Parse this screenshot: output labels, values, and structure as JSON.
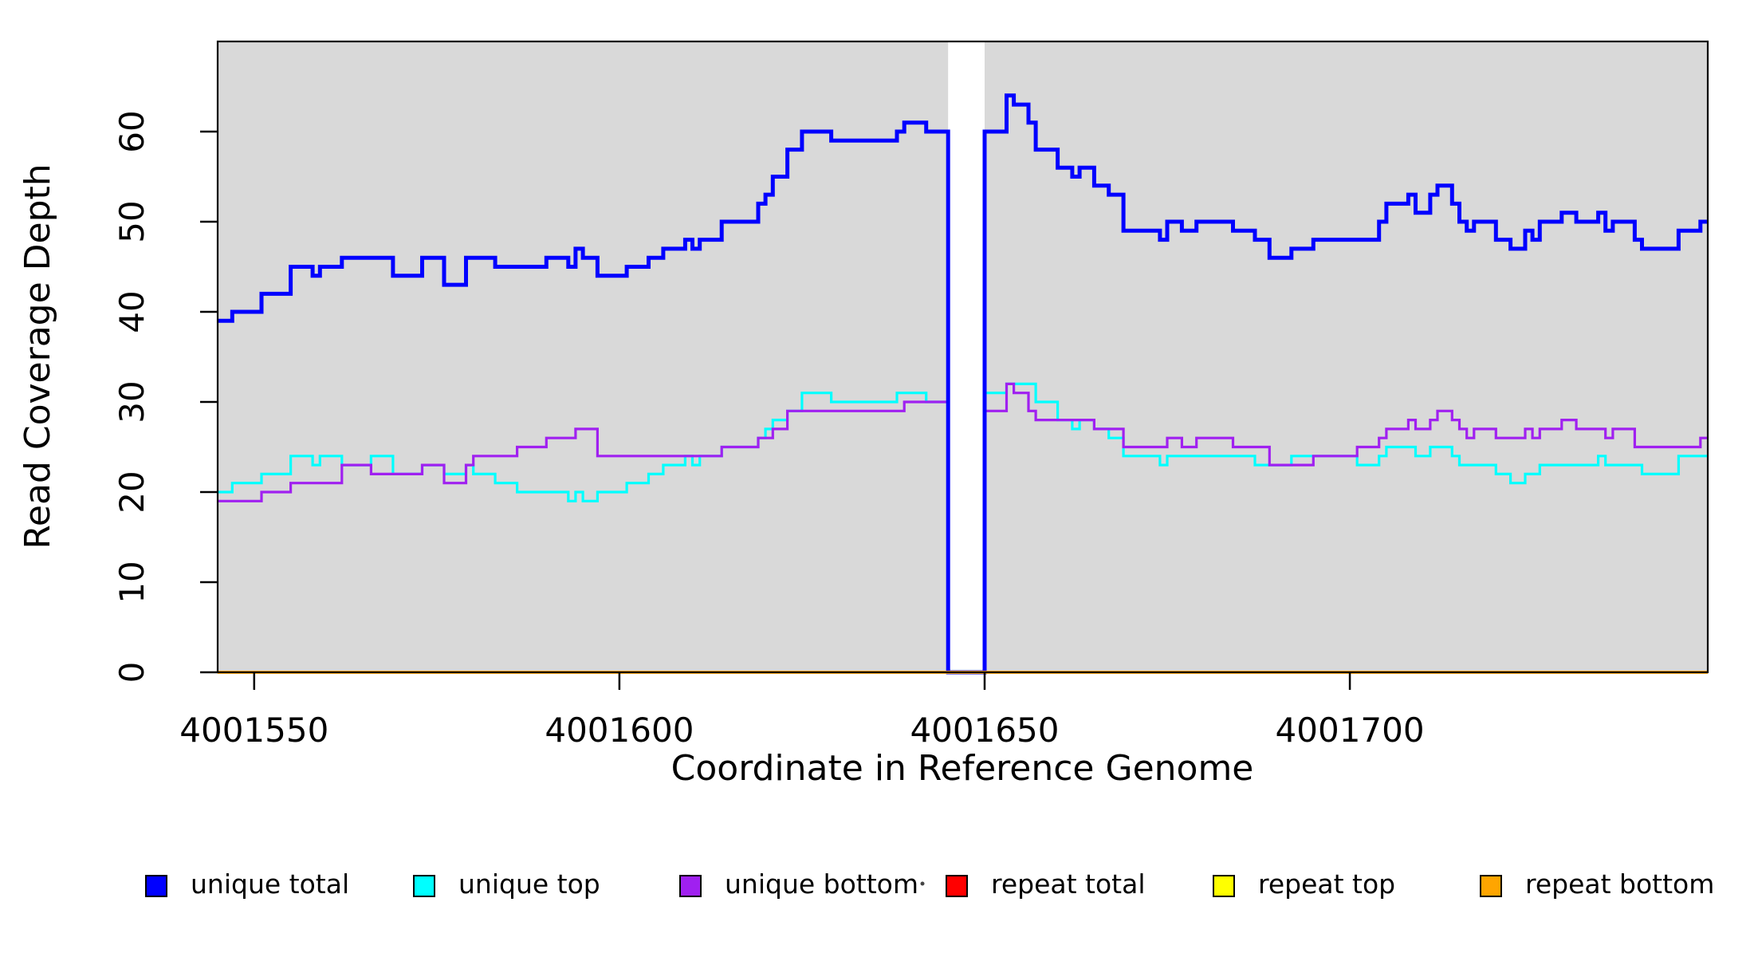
{
  "chart_data": {
    "type": "line",
    "subtype": "step-coverage-plot",
    "title": "",
    "xlabel": "Coordinate in Reference Genome",
    "ylabel": "Read Coverage Depth",
    "xlim": [
      4001545,
      4001749
    ],
    "ylim": [
      0,
      70
    ],
    "x_ticks": [
      4001550,
      4001600,
      4001650,
      4001700
    ],
    "y_ticks": [
      0,
      10,
      20,
      30,
      40,
      50,
      60
    ],
    "grid": "off",
    "plot_background": "#d9d9d9",
    "page_background": "#ffffff",
    "gap_region": {
      "start": 4001645,
      "end": 4001650,
      "color": "#ffffff",
      "note": "white band where all coverage = 0"
    },
    "legend_position": "bottom",
    "x_base": 4001545,
    "x_end_offset": 204,
    "series": [
      {
        "name": "unique total",
        "color": "#0000ff",
        "line_width": 5,
        "segments": [
          [
            0,
            39
          ],
          [
            2,
            40
          ],
          [
            6,
            42
          ],
          [
            10,
            45
          ],
          [
            13,
            44
          ],
          [
            14,
            45
          ],
          [
            17,
            46
          ],
          [
            24,
            44
          ],
          [
            28,
            46
          ],
          [
            31,
            43
          ],
          [
            34,
            46
          ],
          [
            38,
            45
          ],
          [
            45,
            46
          ],
          [
            48,
            45
          ],
          [
            49,
            47
          ],
          [
            50,
            46
          ],
          [
            52,
            44
          ],
          [
            56,
            45
          ],
          [
            59,
            46
          ],
          [
            61,
            47
          ],
          [
            64,
            48
          ],
          [
            65,
            47
          ],
          [
            66,
            48
          ],
          [
            69,
            50
          ],
          [
            74,
            52
          ],
          [
            75,
            53
          ],
          [
            76,
            55
          ],
          [
            78,
            58
          ],
          [
            80,
            60
          ],
          [
            84,
            59
          ],
          [
            93,
            60
          ],
          [
            94,
            61
          ],
          [
            97,
            60
          ],
          [
            100,
            0
          ],
          [
            105,
            60
          ],
          [
            108,
            64
          ],
          [
            109,
            63
          ],
          [
            111,
            61
          ],
          [
            112,
            58
          ],
          [
            115,
            56
          ],
          [
            117,
            55
          ],
          [
            118,
            56
          ],
          [
            120,
            54
          ],
          [
            122,
            53
          ],
          [
            124,
            49
          ],
          [
            129,
            48
          ],
          [
            130,
            50
          ],
          [
            132,
            49
          ],
          [
            134,
            50
          ],
          [
            139,
            49
          ],
          [
            142,
            48
          ],
          [
            144,
            46
          ],
          [
            147,
            47
          ],
          [
            150,
            48
          ],
          [
            159,
            50
          ],
          [
            160,
            52
          ],
          [
            163,
            53
          ],
          [
            164,
            51
          ],
          [
            166,
            53
          ],
          [
            167,
            54
          ],
          [
            169,
            52
          ],
          [
            170,
            50
          ],
          [
            171,
            49
          ],
          [
            172,
            50
          ],
          [
            175,
            48
          ],
          [
            177,
            47
          ],
          [
            179,
            49
          ],
          [
            180,
            48
          ],
          [
            181,
            50
          ],
          [
            184,
            51
          ],
          [
            186,
            50
          ],
          [
            189,
            51
          ],
          [
            190,
            49
          ],
          [
            191,
            50
          ],
          [
            194,
            48
          ],
          [
            195,
            47
          ],
          [
            200,
            49
          ],
          [
            203,
            50
          ]
        ]
      },
      {
        "name": "unique top",
        "color": "#00ffff",
        "line_width": 3.2,
        "segments": [
          [
            0,
            20
          ],
          [
            2,
            21
          ],
          [
            6,
            22
          ],
          [
            10,
            24
          ],
          [
            13,
            23
          ],
          [
            14,
            24
          ],
          [
            17,
            23
          ],
          [
            21,
            24
          ],
          [
            24,
            22
          ],
          [
            28,
            23
          ],
          [
            31,
            22
          ],
          [
            34,
            23
          ],
          [
            35,
            22
          ],
          [
            38,
            21
          ],
          [
            41,
            20
          ],
          [
            48,
            19
          ],
          [
            49,
            20
          ],
          [
            50,
            19
          ],
          [
            52,
            20
          ],
          [
            56,
            21
          ],
          [
            59,
            22
          ],
          [
            61,
            23
          ],
          [
            64,
            24
          ],
          [
            65,
            23
          ],
          [
            66,
            24
          ],
          [
            69,
            25
          ],
          [
            74,
            26
          ],
          [
            75,
            27
          ],
          [
            76,
            28
          ],
          [
            78,
            29
          ],
          [
            80,
            31
          ],
          [
            84,
            30
          ],
          [
            93,
            31
          ],
          [
            97,
            30
          ],
          [
            100,
            0
          ],
          [
            105,
            31
          ],
          [
            108,
            32
          ],
          [
            112,
            30
          ],
          [
            115,
            28
          ],
          [
            117,
            27
          ],
          [
            118,
            28
          ],
          [
            120,
            27
          ],
          [
            122,
            26
          ],
          [
            124,
            24
          ],
          [
            129,
            23
          ],
          [
            130,
            24
          ],
          [
            142,
            23
          ],
          [
            147,
            24
          ],
          [
            156,
            23
          ],
          [
            159,
            24
          ],
          [
            160,
            25
          ],
          [
            164,
            24
          ],
          [
            166,
            25
          ],
          [
            169,
            24
          ],
          [
            170,
            23
          ],
          [
            175,
            22
          ],
          [
            177,
            21
          ],
          [
            179,
            22
          ],
          [
            181,
            23
          ],
          [
            189,
            24
          ],
          [
            190,
            23
          ],
          [
            195,
            22
          ],
          [
            200,
            24
          ]
        ]
      },
      {
        "name": "unique bottom",
        "color": "#a020f0",
        "line_width": 3.2,
        "segments": [
          [
            0,
            19
          ],
          [
            6,
            20
          ],
          [
            10,
            21
          ],
          [
            17,
            23
          ],
          [
            21,
            22
          ],
          [
            28,
            23
          ],
          [
            31,
            21
          ],
          [
            34,
            23
          ],
          [
            35,
            24
          ],
          [
            41,
            25
          ],
          [
            45,
            26
          ],
          [
            49,
            27
          ],
          [
            52,
            24
          ],
          [
            69,
            25
          ],
          [
            74,
            26
          ],
          [
            76,
            27
          ],
          [
            78,
            29
          ],
          [
            94,
            30
          ],
          [
            100,
            0
          ],
          [
            105,
            29
          ],
          [
            108,
            32
          ],
          [
            109,
            31
          ],
          [
            111,
            29
          ],
          [
            112,
            28
          ],
          [
            120,
            27
          ],
          [
            124,
            25
          ],
          [
            130,
            26
          ],
          [
            132,
            25
          ],
          [
            134,
            26
          ],
          [
            139,
            25
          ],
          [
            144,
            23
          ],
          [
            150,
            24
          ],
          [
            156,
            25
          ],
          [
            159,
            26
          ],
          [
            160,
            27
          ],
          [
            163,
            28
          ],
          [
            164,
            27
          ],
          [
            166,
            28
          ],
          [
            167,
            29
          ],
          [
            169,
            28
          ],
          [
            170,
            27
          ],
          [
            171,
            26
          ],
          [
            172,
            27
          ],
          [
            175,
            26
          ],
          [
            179,
            27
          ],
          [
            180,
            26
          ],
          [
            181,
            27
          ],
          [
            184,
            28
          ],
          [
            186,
            27
          ],
          [
            190,
            26
          ],
          [
            191,
            27
          ],
          [
            194,
            25
          ],
          [
            203,
            26
          ]
        ]
      },
      {
        "name": "repeat total",
        "color": "#ff0000",
        "line_width": 3.2,
        "segments": [
          [
            0,
            0
          ]
        ]
      },
      {
        "name": "repeat top",
        "color": "#ffff00",
        "line_width": 3.2,
        "segments": [
          [
            0,
            0
          ]
        ]
      },
      {
        "name": "repeat bottom",
        "color": "#ffa500",
        "line_width": 3.8,
        "segments": [
          [
            0,
            0
          ]
        ]
      }
    ],
    "legend": [
      {
        "label": "unique total",
        "color": "#0000ff"
      },
      {
        "label": "unique top",
        "color": "#00ffff"
      },
      {
        "label": "unique bottom",
        "color": "#a020f0"
      },
      {
        "label": "repeat total",
        "color": "#ff0000"
      },
      {
        "label": "repeat top",
        "color": "#ffff00"
      },
      {
        "label": "repeat bottom",
        "color": "#ffa500"
      }
    ]
  }
}
